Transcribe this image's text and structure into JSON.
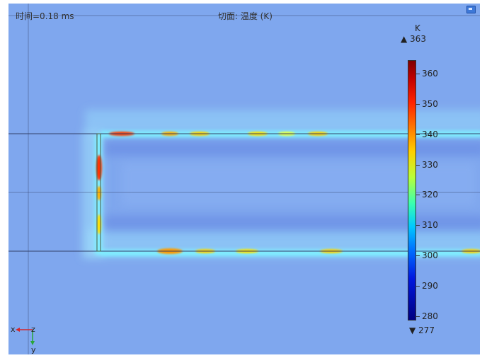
{
  "header": {
    "time_label": "时间=0.18 ms",
    "title": "切面: 温度 (K)"
  },
  "colorbar": {
    "unit": "K",
    "max_label": "▲ 363",
    "min_label": "▼ 277",
    "min": 277,
    "max": 363,
    "ticks": [
      "360",
      "350",
      "340",
      "330",
      "320",
      "310",
      "300",
      "290",
      "280"
    ]
  },
  "axes": {
    "x_label": "x",
    "y_label": "y",
    "z_label": "z"
  },
  "colors": {
    "background": "#7fa7ee",
    "hot": "#ff2a00",
    "warm": "#ffd000",
    "cool": "#6cdcff",
    "edge_line": "#33406a"
  }
}
